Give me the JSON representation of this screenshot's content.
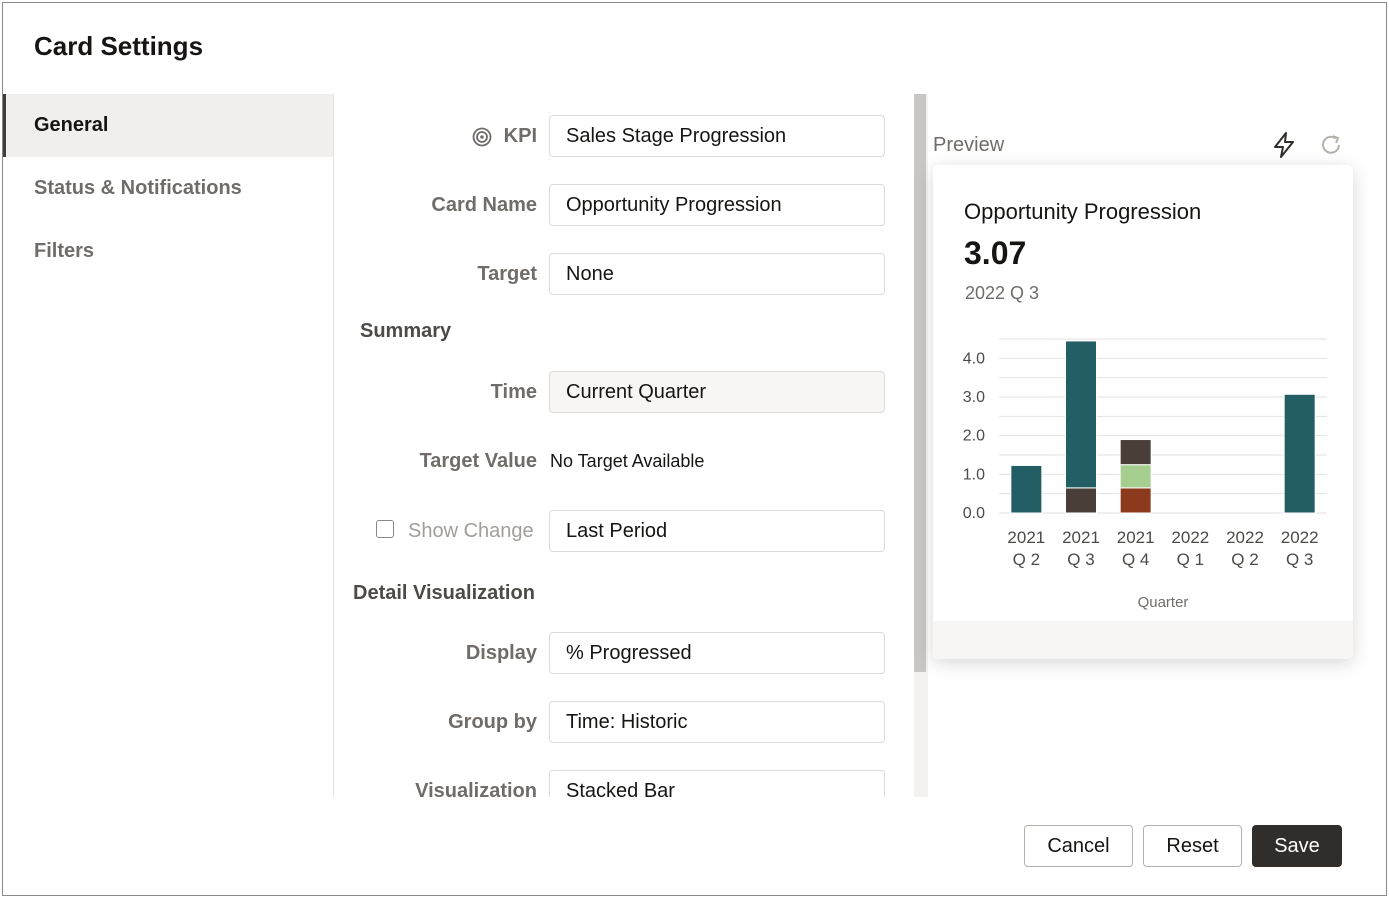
{
  "dialog": {
    "title": "Card Settings"
  },
  "sidebar": {
    "items": [
      {
        "label": "General"
      },
      {
        "label": "Status & Notifications"
      },
      {
        "label": "Filters"
      }
    ]
  },
  "form": {
    "kpi": {
      "label": "KPI",
      "value": "Sales Stage Progression"
    },
    "card_name": {
      "label": "Card Name",
      "value": "Opportunity Progression"
    },
    "target": {
      "label": "Target",
      "value": "None"
    },
    "summary_heading": "Summary",
    "time": {
      "label": "Time",
      "value": "Current Quarter"
    },
    "target_value": {
      "label": "Target Value",
      "value": "No Target Available"
    },
    "show_change": {
      "label": "Show Change",
      "value": "Last Period",
      "checked": false
    },
    "detail_heading": "Detail Visualization",
    "display": {
      "label": "Display",
      "value": "% Progressed"
    },
    "group_by": {
      "label": "Group by",
      "value": "Time: Historic"
    },
    "visualization": {
      "label": "Visualization",
      "value": "Stacked Bar"
    }
  },
  "preview": {
    "label": "Preview",
    "card": {
      "title": "Opportunity Progression",
      "value": "3.07",
      "period": "2022 Q 3"
    }
  },
  "chart_data": {
    "type": "bar",
    "stacked": true,
    "categories": [
      [
        "2021",
        "Q 2"
      ],
      [
        "2021",
        "Q 3"
      ],
      [
        "2021",
        "Q 4"
      ],
      [
        "2022",
        "Q 1"
      ],
      [
        "2022",
        "Q 2"
      ],
      [
        "2022",
        "Q 3"
      ]
    ],
    "series": [
      {
        "color": "#a6cf8f",
        "values": [
          0,
          0,
          0.6,
          0,
          0,
          0
        ]
      },
      {
        "color": "#8c3a1c",
        "values": [
          0,
          0,
          0.65,
          0,
          0,
          0
        ]
      },
      {
        "color": "#4a3f38",
        "values": [
          0,
          0.65,
          0.65,
          0,
          0,
          0
        ]
      },
      {
        "color": "#225e63",
        "values": [
          1.23,
          3.8,
          0,
          0,
          0,
          3.07
        ]
      }
    ],
    "stack_order": [
      1,
      0,
      2,
      3
    ],
    "y_ticks": [
      "0.0",
      "1.0",
      "2.0",
      "3.0",
      "4.0"
    ],
    "ylim": [
      0,
      4.5
    ],
    "xlabel": "Quarter",
    "grid": true
  },
  "buttons": {
    "cancel": "Cancel",
    "reset": "Reset",
    "save": "Save"
  }
}
